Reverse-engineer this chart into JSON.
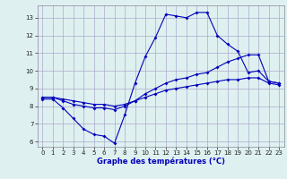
{
  "xlabel": "Graphe des températures (°C)",
  "background_color": "#dff0f0",
  "grid_color": "#aaaacc",
  "line_color": "#0000bb",
  "ylim": [
    5.7,
    13.7
  ],
  "xlim": [
    -0.5,
    23.5
  ],
  "yticks": [
    6,
    7,
    8,
    9,
    10,
    11,
    12,
    13
  ],
  "xticks": [
    0,
    1,
    2,
    3,
    4,
    5,
    6,
    7,
    8,
    9,
    10,
    11,
    12,
    13,
    14,
    15,
    16,
    17,
    18,
    19,
    20,
    21,
    22,
    23
  ],
  "line1_x": [
    0,
    1,
    2,
    3,
    4,
    5,
    6,
    7,
    8,
    9,
    10,
    11,
    12,
    13,
    14,
    15,
    16,
    17,
    18,
    19,
    20,
    21,
    22,
    23
  ],
  "line1_y": [
    8.4,
    8.4,
    7.9,
    7.3,
    6.7,
    6.4,
    6.3,
    5.9,
    7.5,
    9.3,
    10.8,
    11.9,
    13.2,
    13.1,
    13.0,
    13.3,
    13.3,
    12.0,
    11.5,
    11.1,
    9.9,
    10.0,
    9.4,
    9.3
  ],
  "line2_x": [
    0,
    1,
    2,
    3,
    4,
    5,
    6,
    7,
    8,
    9,
    10,
    11,
    12,
    13,
    14,
    15,
    16,
    17,
    18,
    19,
    20,
    21,
    22,
    23
  ],
  "line2_y": [
    8.5,
    8.5,
    8.3,
    8.1,
    8.0,
    7.9,
    7.9,
    7.8,
    8.0,
    8.3,
    8.7,
    9.0,
    9.3,
    9.5,
    9.6,
    9.8,
    9.9,
    10.2,
    10.5,
    10.7,
    10.9,
    10.9,
    9.4,
    9.3
  ],
  "line3_x": [
    0,
    1,
    2,
    3,
    4,
    5,
    6,
    7,
    8,
    9,
    10,
    11,
    12,
    13,
    14,
    15,
    16,
    17,
    18,
    19,
    20,
    21,
    22,
    23
  ],
  "line3_y": [
    8.5,
    8.5,
    8.4,
    8.3,
    8.2,
    8.1,
    8.1,
    8.0,
    8.1,
    8.3,
    8.5,
    8.7,
    8.9,
    9.0,
    9.1,
    9.2,
    9.3,
    9.4,
    9.5,
    9.5,
    9.6,
    9.6,
    9.3,
    9.2
  ],
  "xlabel_fontsize": 6.0,
  "xlabel_color": "#0000bb",
  "tick_fontsize": 5.0,
  "marker_size": 2.0,
  "line_width": 0.8
}
